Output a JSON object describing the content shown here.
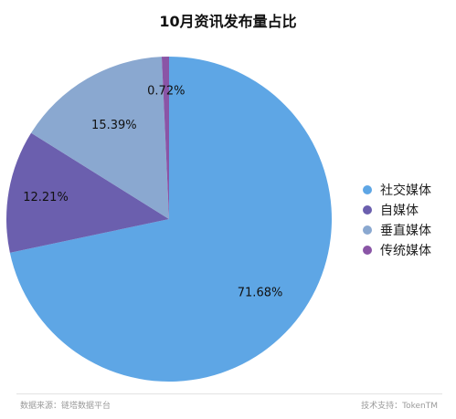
{
  "chart_data": {
    "type": "pie",
    "title": "10月资讯发布量占比",
    "labels": [
      "社交媒体",
      "自媒体",
      "垂直媒体",
      "传统媒体"
    ],
    "values": [
      71.68,
      12.21,
      15.39,
      0.72
    ],
    "value_labels": [
      "71.68%",
      "12.21%",
      "15.39%",
      "0.72%"
    ],
    "colors": [
      "#5ea6e5",
      "#6b5fae",
      "#8aa8d0",
      "#8a55a6"
    ],
    "start": "12 o'clock",
    "direction": "clockwise",
    "legend_position": "right"
  },
  "footer": {
    "source": "数据来源：链塔数据平台",
    "tech_support": "技术支持：TokenTM"
  }
}
